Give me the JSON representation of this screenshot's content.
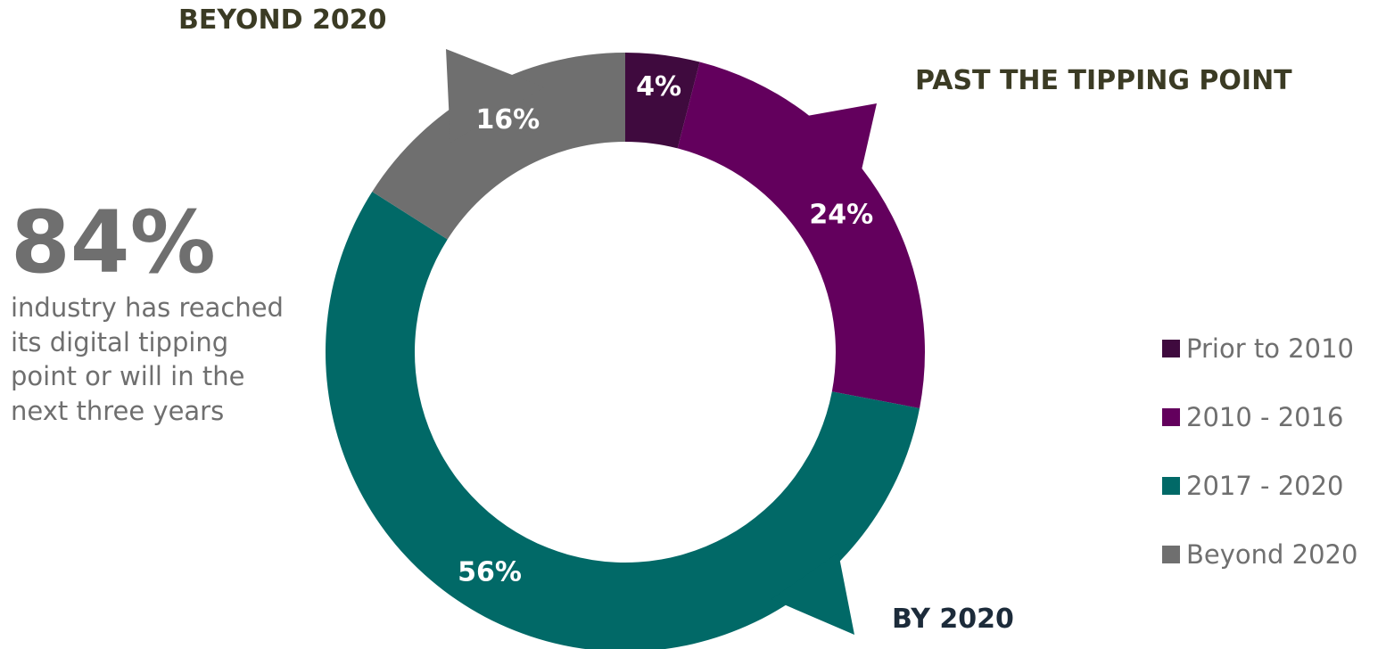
{
  "colors": {
    "prior_2010": "#3f0a3e",
    "y2010_2016": "#63005d",
    "y2017_2020": "#016967",
    "beyond_2020": "#6f6f6f",
    "title_text": "#3b3b24",
    "title_dark": "#1c2b3a",
    "body_text": "#6f6f6f",
    "slice_label": "#ffffff"
  },
  "annotations": {
    "beyond_2020": "BEYOND 2020",
    "past_tipping_point": "PAST THE TIPPING POINT",
    "by_2020": "BY 2020"
  },
  "stat": {
    "value": "84%",
    "text": "industry has reached its digital tipping point or will in the next three years"
  },
  "chart_data": {
    "type": "pie",
    "subtype": "donut",
    "title": "",
    "categories": [
      "Prior to 2010",
      "2010 - 2016",
      "2017 - 2020",
      "Beyond 2020"
    ],
    "values": [
      4,
      24,
      56,
      16
    ],
    "labels": [
      "4%",
      "24%",
      "56%",
      "16%"
    ],
    "unit": "%",
    "start_angle_deg": 0,
    "direction": "clockwise",
    "legend": {
      "placement": "right",
      "entries": [
        "Prior to 2010",
        "2010 - 2016",
        "2017 - 2020",
        "Beyond 2020"
      ]
    }
  }
}
